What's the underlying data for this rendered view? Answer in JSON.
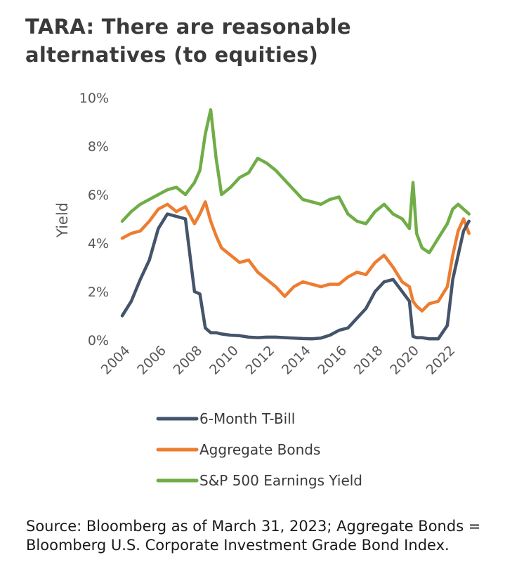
{
  "title": "TARA: There are reasonable alternatives (to equities)",
  "source": "Source: Bloomberg as of March 31, 2023; Aggregate Bonds = Bloomberg U.S. Corporate Investment Grade Bond Index.",
  "chart_data": {
    "type": "line",
    "title": "",
    "xlabel": "",
    "ylabel": "Yield",
    "x": [
      2004,
      2004.5,
      2005,
      2005.5,
      2006,
      2006.5,
      2007,
      2007.5,
      2008,
      2008.3,
      2008.6,
      2008.9,
      2009.2,
      2009.5,
      2010,
      2010.5,
      2011,
      2011.5,
      2012,
      2012.5,
      2013,
      2013.5,
      2014,
      2014.5,
      2015,
      2015.5,
      2016,
      2016.5,
      2017,
      2017.5,
      2018,
      2018.5,
      2019,
      2019.5,
      2019.9,
      2020.1,
      2020.3,
      2020.6,
      2021,
      2021.5,
      2022,
      2022.3,
      2022.6,
      2022.9,
      2023.2
    ],
    "xlim": [
      2004,
      2023.25
    ],
    "xticks": [
      "2004",
      "2006",
      "2008",
      "2010",
      "2012",
      "2014",
      "2016",
      "2018",
      "2020",
      "2022"
    ],
    "xtick_values": [
      2004,
      2006,
      2008,
      2010,
      2012,
      2014,
      2016,
      2018,
      2020,
      2022
    ],
    "ylim": [
      0,
      10
    ],
    "yticks": [
      "0%",
      "2%",
      "4%",
      "6%",
      "8%",
      "10%"
    ],
    "ytick_values": [
      0,
      2,
      4,
      6,
      8,
      10
    ],
    "legend_position": "bottom",
    "series": [
      {
        "name": "6-Month T-Bill",
        "color": "#44546a",
        "values": [
          1.0,
          1.6,
          2.5,
          3.3,
          4.6,
          5.2,
          5.1,
          5.0,
          2.0,
          1.9,
          0.5,
          0.3,
          0.3,
          0.25,
          0.2,
          0.18,
          0.12,
          0.1,
          0.12,
          0.12,
          0.1,
          0.08,
          0.06,
          0.05,
          0.08,
          0.2,
          0.4,
          0.5,
          0.9,
          1.3,
          2.0,
          2.4,
          2.5,
          2.0,
          1.6,
          0.15,
          0.1,
          0.1,
          0.05,
          0.05,
          0.6,
          2.5,
          3.5,
          4.5,
          4.9
        ]
      },
      {
        "name": "Aggregate Bonds",
        "color": "#ed7d31",
        "values": [
          4.2,
          4.4,
          4.5,
          4.9,
          5.4,
          5.6,
          5.3,
          5.5,
          4.8,
          5.2,
          5.7,
          4.9,
          4.3,
          3.8,
          3.5,
          3.2,
          3.3,
          2.8,
          2.5,
          2.2,
          1.8,
          2.2,
          2.4,
          2.3,
          2.2,
          2.3,
          2.3,
          2.6,
          2.8,
          2.7,
          3.2,
          3.5,
          3.0,
          2.4,
          2.2,
          1.6,
          1.4,
          1.2,
          1.5,
          1.6,
          2.2,
          3.5,
          4.5,
          5.0,
          4.4
        ]
      },
      {
        "name": "S&P 500 Earnings Yield",
        "color": "#70ad47",
        "values": [
          4.9,
          5.3,
          5.6,
          5.8,
          6.0,
          6.2,
          6.3,
          6.0,
          6.5,
          7.0,
          8.5,
          9.5,
          7.5,
          6.0,
          6.3,
          6.7,
          6.9,
          7.5,
          7.3,
          7.0,
          6.6,
          6.2,
          5.8,
          5.7,
          5.6,
          5.8,
          5.9,
          5.2,
          4.9,
          4.8,
          5.3,
          5.6,
          5.2,
          5.0,
          4.6,
          6.5,
          4.4,
          3.8,
          3.6,
          4.2,
          4.8,
          5.4,
          5.6,
          5.4,
          5.2
        ]
      }
    ]
  }
}
